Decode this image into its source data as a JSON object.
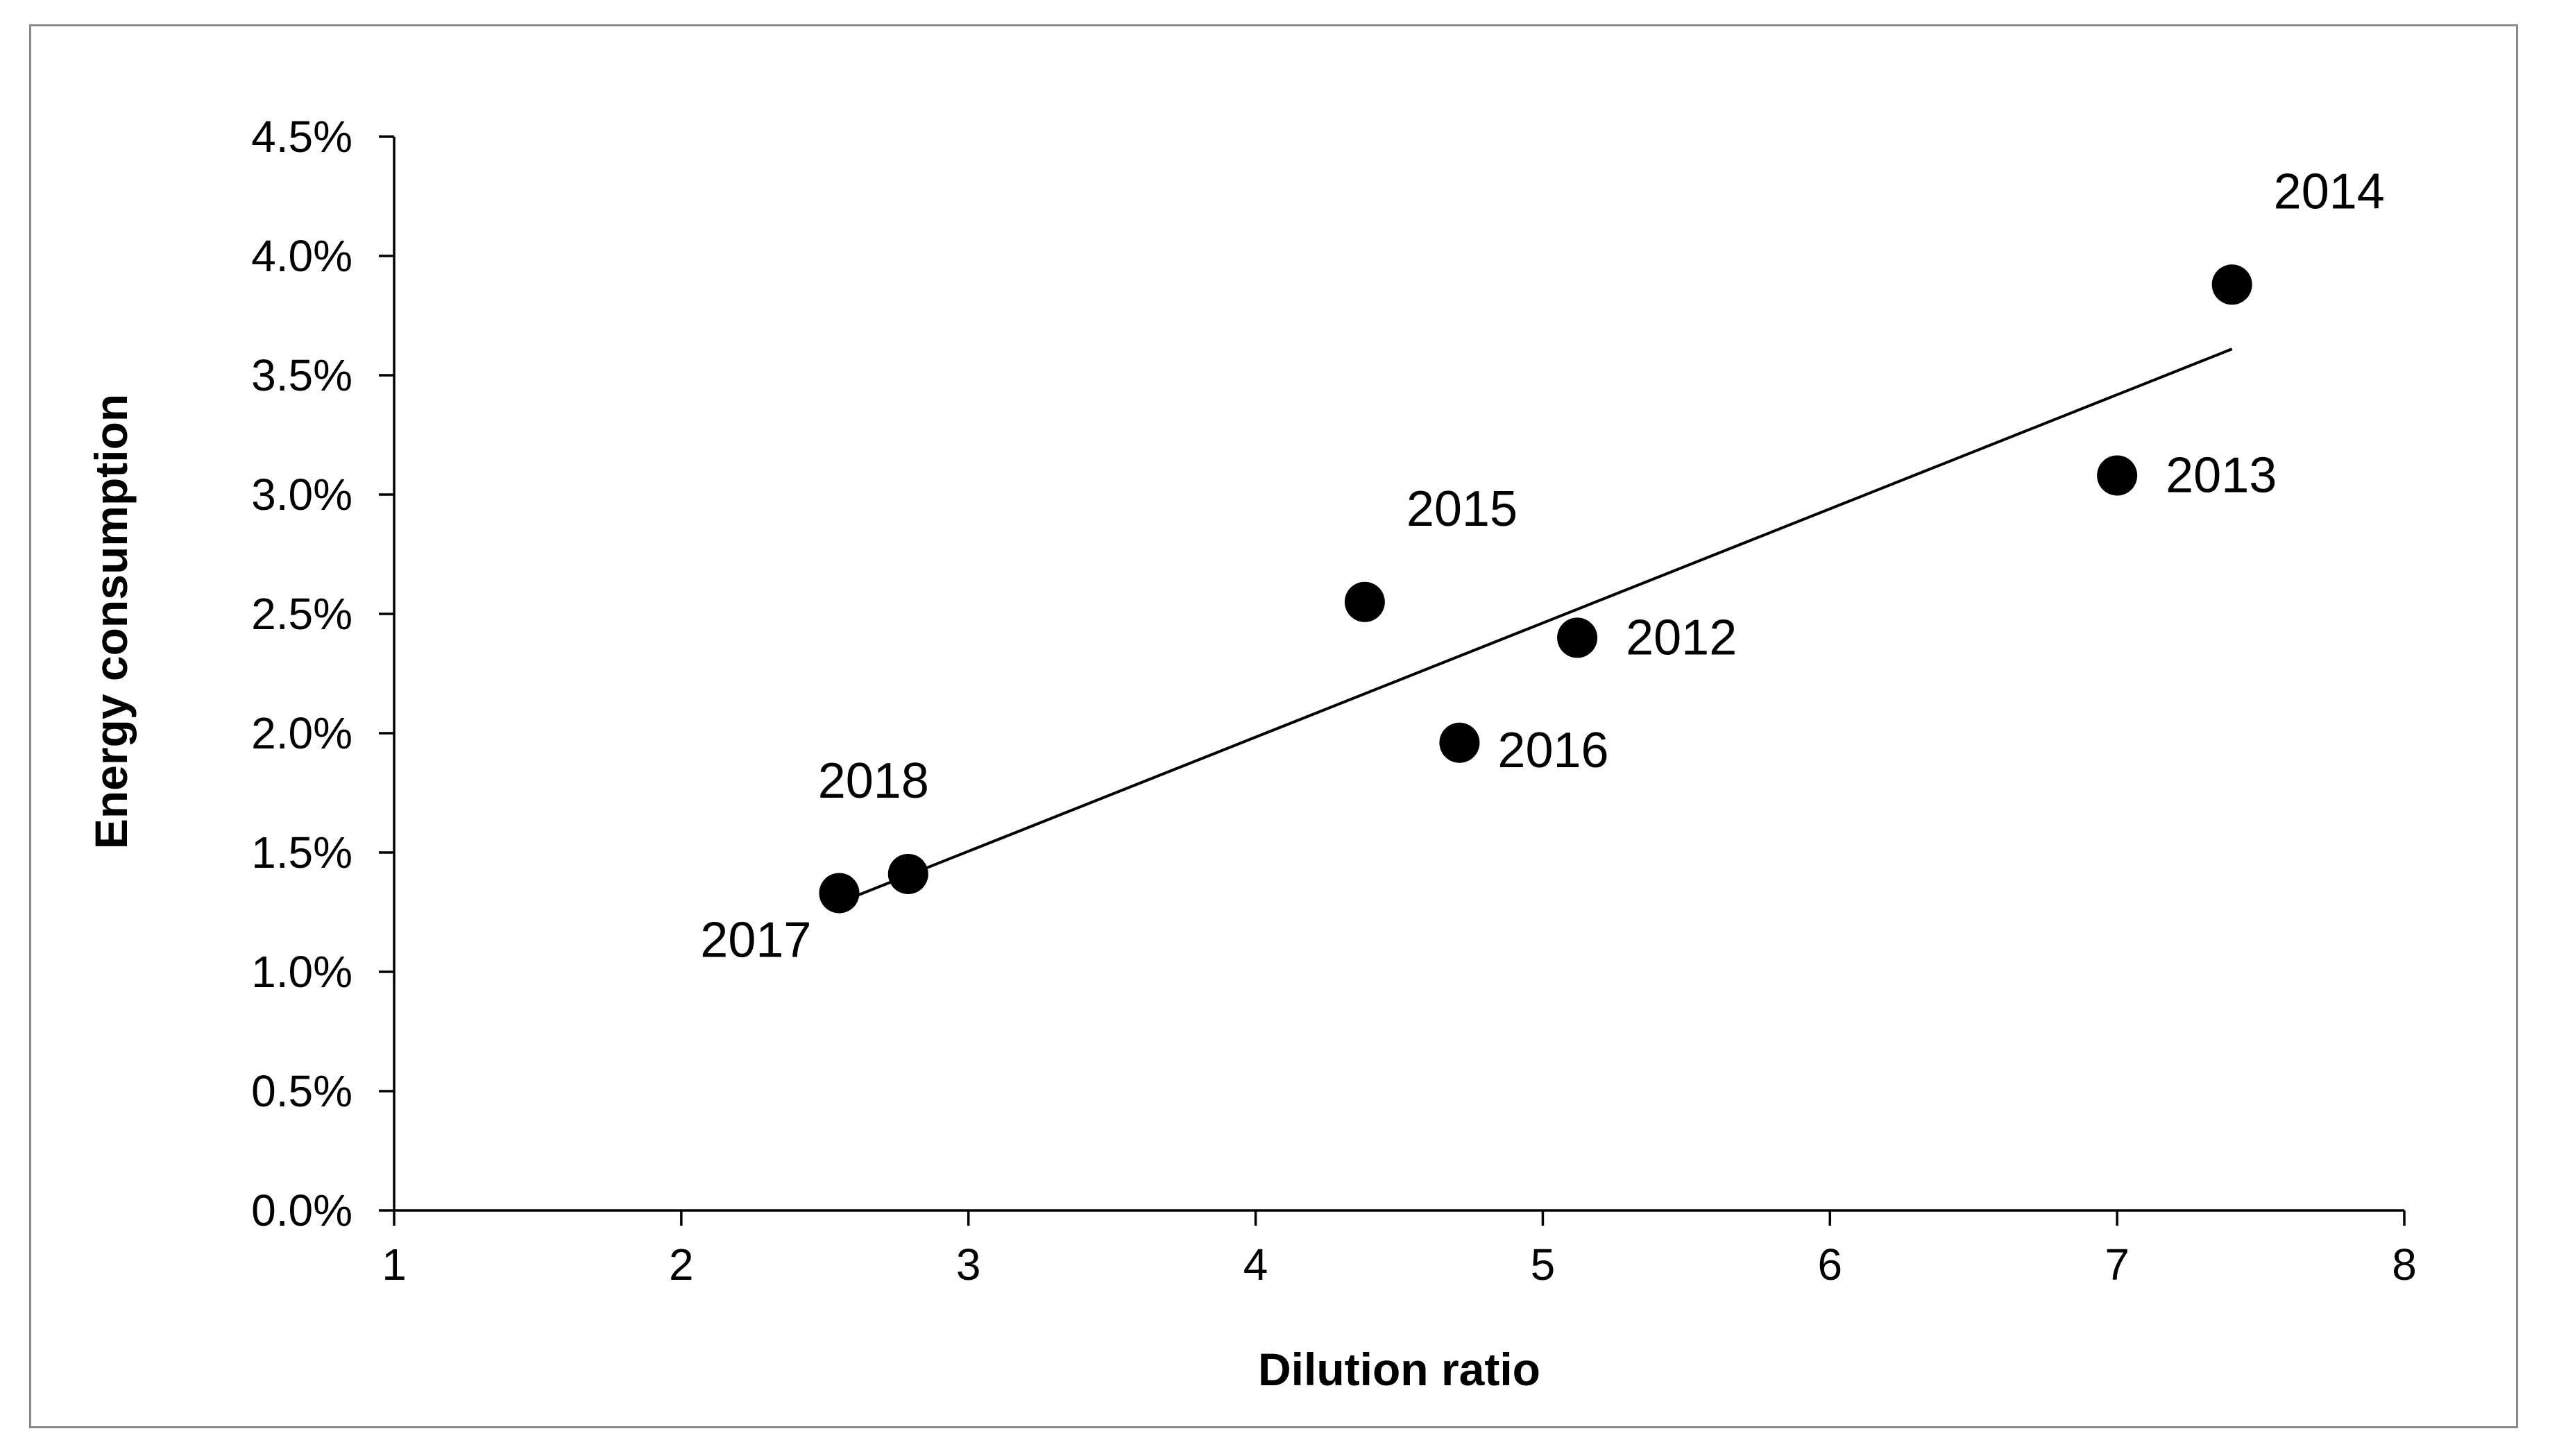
{
  "chart_data": {
    "type": "scatter",
    "xlabel": "Dilution ratio",
    "ylabel": "Energy consumption",
    "xlim": [
      1,
      8
    ],
    "ylim": [
      0.0,
      4.5
    ],
    "x_ticks": [
      "1",
      "2",
      "3",
      "4",
      "5",
      "6",
      "7",
      "8"
    ],
    "y_ticks": [
      "0.0%",
      "0.5%",
      "1.0%",
      "1.5%",
      "2.0%",
      "2.5%",
      "3.0%",
      "3.5%",
      "4.0%",
      "4.5%"
    ],
    "grid": false,
    "legend": "none",
    "marker_color": "#000000",
    "points": [
      {
        "label": "2012",
        "x": 5.12,
        "y": 2.4,
        "label_pos": "right"
      },
      {
        "label": "2013",
        "x": 7.0,
        "y": 3.08,
        "label_pos": "right"
      },
      {
        "label": "2014",
        "x": 7.4,
        "y": 3.88,
        "label_pos": "above-right"
      },
      {
        "label": "2015",
        "x": 4.38,
        "y": 2.55,
        "label_pos": "above-right"
      },
      {
        "label": "2016",
        "x": 4.71,
        "y": 1.96,
        "label_pos": "below-right"
      },
      {
        "label": "2017",
        "x": 2.55,
        "y": 1.33,
        "label_pos": "below-left"
      },
      {
        "label": "2018",
        "x": 2.79,
        "y": 1.41,
        "label_pos": "above"
      }
    ],
    "trendline": {
      "x": [
        2.55,
        7.4
      ],
      "y": [
        1.29,
        3.61
      ]
    }
  }
}
